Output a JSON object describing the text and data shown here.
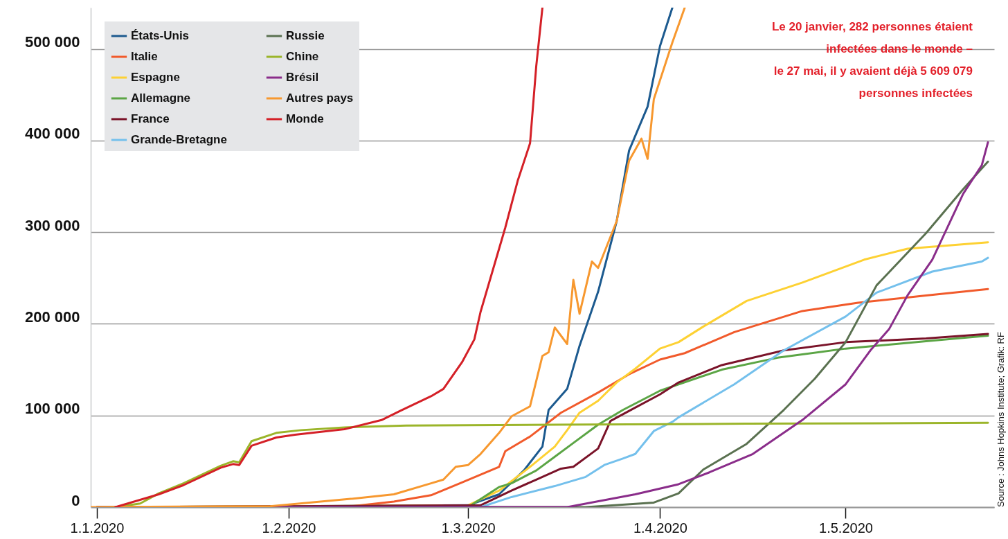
{
  "chart_data": {
    "type": "line",
    "legend": "top left",
    "grid": "y",
    "line_style": "solid",
    "xlim": [
      "2019-12-31",
      "2020-05-25"
    ],
    "xticks": [
      {
        "value": "2020-01-01",
        "label": "1.1.2020"
      },
      {
        "value": "2020-02-01",
        "label": "1.2.2020"
      },
      {
        "value": "2020-03-01",
        "label": "1.3.2020"
      },
      {
        "value": "2020-04-01",
        "label": "1.4.2020"
      },
      {
        "value": "2020-05-01",
        "label": "1.5.2020"
      }
    ],
    "ylim": [
      0,
      545000
    ],
    "yticks": [
      0,
      {
        "value": 100000,
        "label": "100 000"
      },
      {
        "value": 200000,
        "label": "200 000"
      },
      {
        "value": 300000,
        "label": "300 000"
      },
      {
        "value": 400000,
        "label": "400 000"
      },
      {
        "value": 500000,
        "label": "500 000"
      }
    ],
    "annotations": [
      "Le 20 janvier, 282 personnes étaient\ninfectées dans le monde –\nle 27 mai, il y avaient déjà 5 609 079\npersonnes infectées",
      "Source : Johns Hopkins Institute; Grafik: RF"
    ],
    "series": [
      {
        "name": "États-Unis",
        "color": "#1c5a8f",
        "x": [
          "2020-01-01",
          "2020-03-01",
          "2020-03-06",
          "2020-03-10",
          "2020-03-13",
          "2020-03-14",
          "2020-03-17",
          "2020-03-19",
          "2020-03-22",
          "2020-03-25",
          "2020-03-27",
          "2020-03-30",
          "2020-04-01",
          "2020-04-03"
        ],
        "values": [
          0,
          2000,
          14000,
          40000,
          66000,
          106000,
          129000,
          176000,
          235000,
          312000,
          389000,
          437000,
          503000,
          545000
        ]
      },
      {
        "name": "Italie",
        "color": "#f15a2b",
        "x": [
          "2020-01-01",
          "2020-02-10",
          "2020-02-18",
          "2020-02-24",
          "2020-02-29",
          "2020-03-06",
          "2020-03-07",
          "2020-03-11",
          "2020-03-16",
          "2020-03-22",
          "2020-03-27",
          "2020-04-01",
          "2020-04-05",
          "2020-04-13",
          "2020-04-24",
          "2020-05-03",
          "2020-05-14",
          "2020-05-24"
        ],
        "values": [
          0,
          0,
          6000,
          13000,
          27000,
          44000,
          61000,
          77000,
          103000,
          125000,
          145000,
          161000,
          168000,
          191000,
          214000,
          223000,
          231000,
          238000
        ]
      },
      {
        "name": "Espagne",
        "color": "#fdd133",
        "x": [
          "2020-01-01",
          "2020-03-01",
          "2020-03-06",
          "2020-03-11",
          "2020-03-15",
          "2020-03-17",
          "2020-03-19",
          "2020-03-22",
          "2020-03-25",
          "2020-03-28",
          "2020-04-01",
          "2020-04-04",
          "2020-04-08",
          "2020-04-15",
          "2020-04-24",
          "2020-05-04",
          "2020-05-11",
          "2020-05-24"
        ],
        "values": [
          0,
          2000,
          18000,
          44000,
          66000,
          84000,
          103000,
          116000,
          136000,
          151000,
          173000,
          180000,
          197000,
          225000,
          245000,
          270000,
          282000,
          289000
        ]
      },
      {
        "name": "Allemagne",
        "color": "#5ba545",
        "x": [
          "2020-01-01",
          "2020-03-01",
          "2020-03-06",
          "2020-03-08",
          "2020-03-12",
          "2020-03-15",
          "2020-03-18",
          "2020-03-22",
          "2020-03-26",
          "2020-04-01",
          "2020-04-04",
          "2020-04-11",
          "2020-04-20",
          "2020-05-01",
          "2020-05-14",
          "2020-05-24"
        ],
        "values": [
          0,
          0,
          22000,
          26000,
          40000,
          55000,
          70000,
          90000,
          106000,
          127000,
          134000,
          150000,
          163000,
          173000,
          181000,
          187000
        ]
      },
      {
        "name": "France",
        "color": "#7a1329",
        "x": [
          "2020-01-01",
          "2020-03-03",
          "2020-03-08",
          "2020-03-12",
          "2020-03-16",
          "2020-03-18",
          "2020-03-22",
          "2020-03-24",
          "2020-03-27",
          "2020-04-01",
          "2020-04-04",
          "2020-04-11",
          "2020-04-21",
          "2020-05-01",
          "2020-05-14",
          "2020-05-24"
        ],
        "values": [
          0,
          2000,
          18000,
          30000,
          42000,
          44000,
          64000,
          94000,
          105000,
          123000,
          136000,
          155000,
          171000,
          180000,
          184000,
          189000
        ]
      },
      {
        "name": "Grande-Bretagne",
        "color": "#74c0ec",
        "x": [
          "2020-01-01",
          "2020-03-03",
          "2020-03-08",
          "2020-03-15",
          "2020-03-20",
          "2020-03-23",
          "2020-03-26",
          "2020-03-28",
          "2020-03-31",
          "2020-04-03",
          "2020-04-04",
          "2020-04-13",
          "2020-04-21",
          "2020-05-01",
          "2020-05-06",
          "2020-05-15",
          "2020-05-23",
          "2020-05-24"
        ],
        "values": [
          0,
          0,
          11000,
          23000,
          33000,
          46000,
          53000,
          58000,
          83000,
          93000,
          98000,
          134000,
          171000,
          208000,
          234000,
          257000,
          268000,
          272000
        ]
      },
      {
        "name": "Russie",
        "color": "#5a7150",
        "x": [
          "2020-01-01",
          "2020-03-20",
          "2020-03-31",
          "2020-04-04",
          "2020-04-08",
          "2020-04-15",
          "2020-04-21",
          "2020-04-26",
          "2020-05-01",
          "2020-05-06",
          "2020-05-14",
          "2020-05-20",
          "2020-05-24"
        ],
        "values": [
          0,
          0,
          5000,
          15000,
          41000,
          69000,
          106000,
          140000,
          180000,
          242000,
          299000,
          347000,
          377000
        ]
      },
      {
        "name": "Chine",
        "color": "#9bb52a",
        "x": [
          "2020-01-04",
          "2020-01-08",
          "2020-01-11",
          "2020-01-15",
          "2020-01-21",
          "2020-01-23",
          "2020-01-24",
          "2020-01-26",
          "2020-01-30",
          "2020-02-03",
          "2020-02-10",
          "2020-02-20",
          "2020-03-15",
          "2020-04-15",
          "2020-05-24"
        ],
        "values": [
          0,
          4000,
          15000,
          26000,
          45000,
          50000,
          49000,
          72000,
          81000,
          84000,
          87000,
          89000,
          90000,
          91000,
          92000
        ]
      },
      {
        "name": "Brésil",
        "color": "#8a2d8a",
        "x": [
          "2020-01-01",
          "2020-03-17",
          "2020-03-28",
          "2020-04-04",
          "2020-04-09",
          "2020-04-16",
          "2020-04-24",
          "2020-05-01",
          "2020-05-05",
          "2020-05-08",
          "2020-05-11",
          "2020-05-15",
          "2020-05-20",
          "2020-05-23",
          "2020-05-24"
        ],
        "values": [
          0,
          0,
          14000,
          25000,
          38000,
          58000,
          95000,
          134000,
          171000,
          194000,
          231000,
          270000,
          342000,
          373000,
          398000
        ]
      },
      {
        "name": "Autres pays",
        "color": "#f7982f",
        "x": [
          "2019-12-31",
          "2020-01-29",
          "2020-02-11",
          "2020-02-18",
          "2020-02-24",
          "2020-02-26",
          "2020-02-28",
          "2020-03-01",
          "2020-03-03",
          "2020-03-06",
          "2020-03-08",
          "2020-03-11",
          "2020-03-13",
          "2020-03-14",
          "2020-03-15",
          "2020-03-17",
          "2020-03-18",
          "2020-03-19",
          "2020-03-21",
          "2020-03-22",
          "2020-03-25",
          "2020-03-27",
          "2020-03-29",
          "2020-03-30",
          "2020-03-31",
          "2020-04-03",
          "2020-04-05"
        ],
        "values": [
          0,
          1000,
          9000,
          14000,
          26000,
          30000,
          44000,
          46000,
          58000,
          81000,
          99000,
          110000,
          165000,
          169000,
          196000,
          178000,
          248000,
          211000,
          268000,
          261000,
          312000,
          378000,
          402000,
          380000,
          445000,
          507000,
          545000
        ]
      },
      {
        "name": "Monde",
        "color": "#d42027",
        "x": [
          "2020-01-04",
          "2020-01-11",
          "2020-01-15",
          "2020-01-21",
          "2020-01-23",
          "2020-01-24",
          "2020-01-26",
          "2020-01-30",
          "2020-02-02",
          "2020-02-10",
          "2020-02-16",
          "2020-02-19",
          "2020-02-24",
          "2020-02-26",
          "2020-02-29",
          "2020-03-02",
          "2020-03-03",
          "2020-03-07",
          "2020-03-09",
          "2020-03-11",
          "2020-03-12",
          "2020-03-13"
        ],
        "values": [
          0,
          14000,
          24000,
          43000,
          47000,
          46000,
          67000,
          76000,
          79000,
          85000,
          95000,
          105000,
          121000,
          129000,
          158000,
          183000,
          213000,
          305000,
          356000,
          397000,
          481000,
          545000
        ]
      }
    ]
  }
}
